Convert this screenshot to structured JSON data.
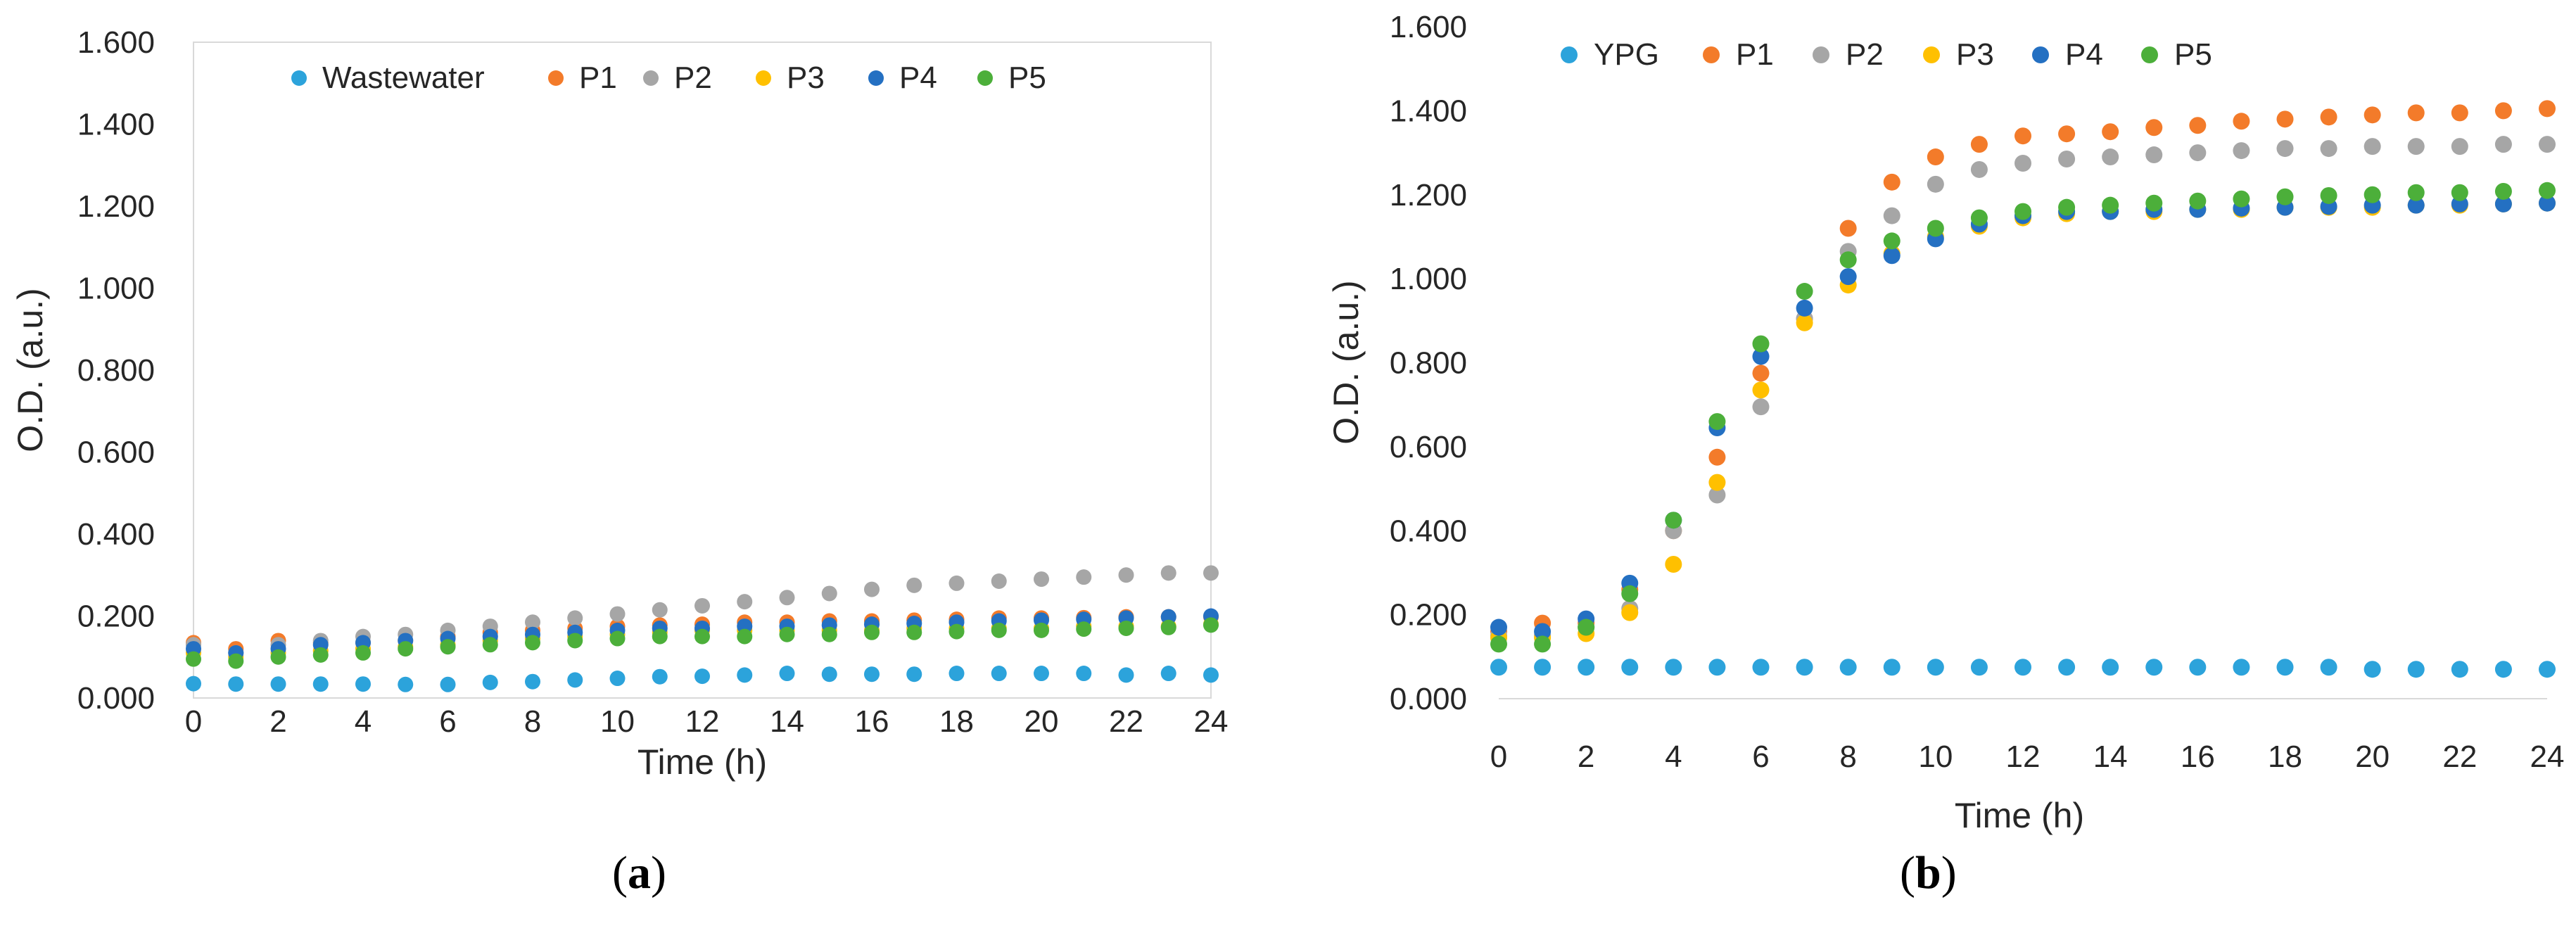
{
  "chart_data": [
    {
      "type": "scatter",
      "panel": "a",
      "xlabel": "Time (h)",
      "ylabel": "O.D. (a.u.)",
      "xlim": [
        0,
        24
      ],
      "ylim": [
        0,
        1.6
      ],
      "x_ticks": [
        "0",
        "2",
        "4",
        "6",
        "8",
        "10",
        "12",
        "14",
        "16",
        "18",
        "20",
        "22",
        "24"
      ],
      "y_ticks": [
        "0.000",
        "0.200",
        "0.400",
        "0.600",
        "0.800",
        "1.000",
        "1.200",
        "1.400",
        "1.600"
      ],
      "legend_position": "top",
      "series": [
        {
          "name": "Wastewater",
          "color": "#2CA3DB",
          "x": [
            0,
            1,
            2,
            3,
            4,
            5,
            6,
            7,
            8,
            9,
            10,
            11,
            12,
            13,
            14,
            15,
            16,
            17,
            18,
            19,
            20,
            21,
            22,
            23,
            24
          ],
          "values": [
            0.035,
            0.034,
            0.034,
            0.034,
            0.034,
            0.033,
            0.033,
            0.038,
            0.04,
            0.044,
            0.048,
            0.052,
            0.053,
            0.056,
            0.06,
            0.058,
            0.058,
            0.058,
            0.06,
            0.06,
            0.06,
            0.06,
            0.056,
            0.06,
            0.056
          ]
        },
        {
          "name": "P1",
          "color": "#F37B2A",
          "x": [
            0,
            1,
            2,
            3,
            4,
            5,
            6,
            7,
            8,
            9,
            10,
            11,
            12,
            13,
            14,
            15,
            16,
            17,
            18,
            19,
            20,
            21,
            22,
            23,
            24
          ],
          "values": [
            0.135,
            0.12,
            0.14,
            0.135,
            0.135,
            0.14,
            0.15,
            0.16,
            0.165,
            0.17,
            0.175,
            0.178,
            0.18,
            0.185,
            0.185,
            0.188,
            0.188,
            0.19,
            0.192,
            0.195,
            0.195,
            0.196,
            0.198,
            0.198,
            0.198
          ]
        },
        {
          "name": "P2",
          "color": "#A6A6A6",
          "x": [
            0,
            1,
            2,
            3,
            4,
            5,
            6,
            7,
            8,
            9,
            10,
            11,
            12,
            13,
            14,
            15,
            16,
            17,
            18,
            19,
            20,
            21,
            22,
            23,
            24
          ],
          "values": [
            0.13,
            0.11,
            0.13,
            0.14,
            0.15,
            0.155,
            0.165,
            0.175,
            0.185,
            0.195,
            0.205,
            0.215,
            0.225,
            0.235,
            0.245,
            0.255,
            0.265,
            0.275,
            0.28,
            0.285,
            0.29,
            0.295,
            0.3,
            0.305,
            0.305
          ]
        },
        {
          "name": "P3",
          "color": "#FFC000",
          "x": [
            0,
            1,
            2,
            3,
            4,
            5,
            6,
            7,
            8,
            9,
            10,
            11,
            12,
            13,
            14,
            15,
            16,
            17,
            18,
            19,
            20,
            21,
            22,
            23,
            24
          ],
          "values": [
            0.11,
            0.1,
            0.11,
            0.115,
            0.12,
            0.125,
            0.13,
            0.14,
            0.145,
            0.15,
            0.155,
            0.16,
            0.165,
            0.165,
            0.165,
            0.165,
            0.165,
            0.17,
            0.17,
            0.17,
            0.17,
            0.175,
            0.175,
            0.175,
            0.18
          ]
        },
        {
          "name": "P4",
          "color": "#2470C2",
          "x": [
            0,
            1,
            2,
            3,
            4,
            5,
            6,
            7,
            8,
            9,
            10,
            11,
            12,
            13,
            14,
            15,
            16,
            17,
            18,
            19,
            20,
            21,
            22,
            23,
            24
          ],
          "values": [
            0.12,
            0.11,
            0.12,
            0.13,
            0.135,
            0.14,
            0.145,
            0.15,
            0.155,
            0.16,
            0.165,
            0.17,
            0.17,
            0.175,
            0.175,
            0.178,
            0.18,
            0.182,
            0.185,
            0.188,
            0.19,
            0.192,
            0.195,
            0.198,
            0.2
          ]
        },
        {
          "name": "P5",
          "color": "#4CAF3A",
          "x": [
            0,
            1,
            2,
            3,
            4,
            5,
            6,
            7,
            8,
            9,
            10,
            11,
            12,
            13,
            14,
            15,
            16,
            17,
            18,
            19,
            20,
            21,
            22,
            23,
            24
          ],
          "values": [
            0.095,
            0.09,
            0.1,
            0.105,
            0.11,
            0.12,
            0.125,
            0.13,
            0.135,
            0.14,
            0.145,
            0.15,
            0.15,
            0.15,
            0.155,
            0.155,
            0.16,
            0.16,
            0.162,
            0.165,
            0.165,
            0.168,
            0.17,
            0.172,
            0.178
          ]
        }
      ]
    },
    {
      "type": "scatter",
      "panel": "b",
      "xlabel": "Time (h)",
      "ylabel": "O.D. (a.u.)",
      "xlim": [
        0,
        24
      ],
      "ylim": [
        0,
        1.6
      ],
      "x_ticks": [
        "0",
        "2",
        "4",
        "6",
        "8",
        "10",
        "12",
        "14",
        "16",
        "18",
        "20",
        "22",
        "24"
      ],
      "y_ticks": [
        "0.000",
        "0.200",
        "0.400",
        "0.600",
        "0.800",
        "1.000",
        "1.200",
        "1.400",
        "1.600"
      ],
      "legend_position": "top",
      "series": [
        {
          "name": "YPG",
          "color": "#2CA3DB",
          "x": [
            0,
            1,
            2,
            3,
            4,
            5,
            6,
            7,
            8,
            9,
            10,
            11,
            12,
            13,
            14,
            15,
            16,
            17,
            18,
            19,
            20,
            21,
            22,
            23,
            24
          ],
          "values": [
            0.075,
            0.075,
            0.075,
            0.075,
            0.075,
            0.075,
            0.075,
            0.075,
            0.075,
            0.075,
            0.075,
            0.075,
            0.075,
            0.075,
            0.075,
            0.075,
            0.075,
            0.075,
            0.075,
            0.075,
            0.07,
            0.07,
            0.07,
            0.07,
            0.07
          ]
        },
        {
          "name": "P1",
          "color": "#F37B2A",
          "x": [
            0,
            1,
            2,
            3,
            4,
            5,
            6,
            7,
            8,
            9,
            10,
            11,
            12,
            13,
            14,
            15,
            16,
            17,
            18,
            19,
            20,
            21,
            22,
            23,
            24
          ],
          "values": [
            0.16,
            0.18,
            0.18,
            0.26,
            0.4,
            0.575,
            0.775,
            0.905,
            1.12,
            1.23,
            1.29,
            1.32,
            1.34,
            1.345,
            1.35,
            1.36,
            1.365,
            1.375,
            1.38,
            1.385,
            1.39,
            1.395,
            1.395,
            1.4,
            1.405
          ]
        },
        {
          "name": "P2",
          "color": "#A6A6A6",
          "x": [
            0,
            1,
            2,
            3,
            4,
            5,
            6,
            7,
            8,
            9,
            10,
            11,
            12,
            13,
            14,
            15,
            16,
            17,
            18,
            19,
            20,
            21,
            22,
            23,
            24
          ],
          "values": [
            0.15,
            0.15,
            0.17,
            0.215,
            0.4,
            0.485,
            0.695,
            0.905,
            1.065,
            1.15,
            1.225,
            1.26,
            1.275,
            1.285,
            1.29,
            1.295,
            1.3,
            1.305,
            1.31,
            1.31,
            1.315,
            1.315,
            1.315,
            1.32,
            1.32
          ]
        },
        {
          "name": "P3",
          "color": "#FFC000",
          "x": [
            0,
            1,
            2,
            3,
            4,
            5,
            6,
            7,
            8,
            9,
            10,
            11,
            12,
            13,
            14,
            15,
            16,
            17,
            18,
            19,
            20,
            21,
            22,
            23,
            24
          ],
          "values": [
            0.145,
            0.145,
            0.155,
            0.205,
            0.32,
            0.515,
            0.735,
            0.895,
            0.985,
            1.06,
            1.1,
            1.125,
            1.145,
            1.155,
            1.16,
            1.16,
            1.165,
            1.165,
            1.17,
            1.17,
            1.17,
            1.175,
            1.175,
            1.178,
            1.18
          ]
        },
        {
          "name": "P4",
          "color": "#2470C2",
          "x": [
            0,
            1,
            2,
            3,
            4,
            5,
            6,
            7,
            8,
            9,
            10,
            11,
            12,
            13,
            14,
            15,
            16,
            17,
            18,
            19,
            20,
            21,
            22,
            23,
            24
          ],
          "values": [
            0.17,
            0.16,
            0.19,
            0.275,
            0.425,
            0.645,
            0.815,
            0.93,
            1.005,
            1.055,
            1.095,
            1.13,
            1.15,
            1.16,
            1.16,
            1.165,
            1.165,
            1.168,
            1.17,
            1.172,
            1.175,
            1.175,
            1.178,
            1.178,
            1.18
          ]
        },
        {
          "name": "P5",
          "color": "#4CAF3A",
          "x": [
            0,
            1,
            2,
            3,
            4,
            5,
            6,
            7,
            8,
            9,
            10,
            11,
            12,
            13,
            14,
            15,
            16,
            17,
            18,
            19,
            20,
            21,
            22,
            23,
            24
          ],
          "values": [
            0.13,
            0.13,
            0.17,
            0.25,
            0.425,
            0.66,
            0.845,
            0.97,
            1.045,
            1.09,
            1.12,
            1.145,
            1.16,
            1.17,
            1.175,
            1.18,
            1.185,
            1.19,
            1.195,
            1.198,
            1.2,
            1.205,
            1.205,
            1.208,
            1.21
          ]
        }
      ]
    }
  ],
  "panels": {
    "a": {
      "label_open": "(",
      "label_letter": "a",
      "label_close": ")"
    },
    "b": {
      "label_open": "(",
      "label_letter": "b",
      "label_close": ")"
    }
  }
}
